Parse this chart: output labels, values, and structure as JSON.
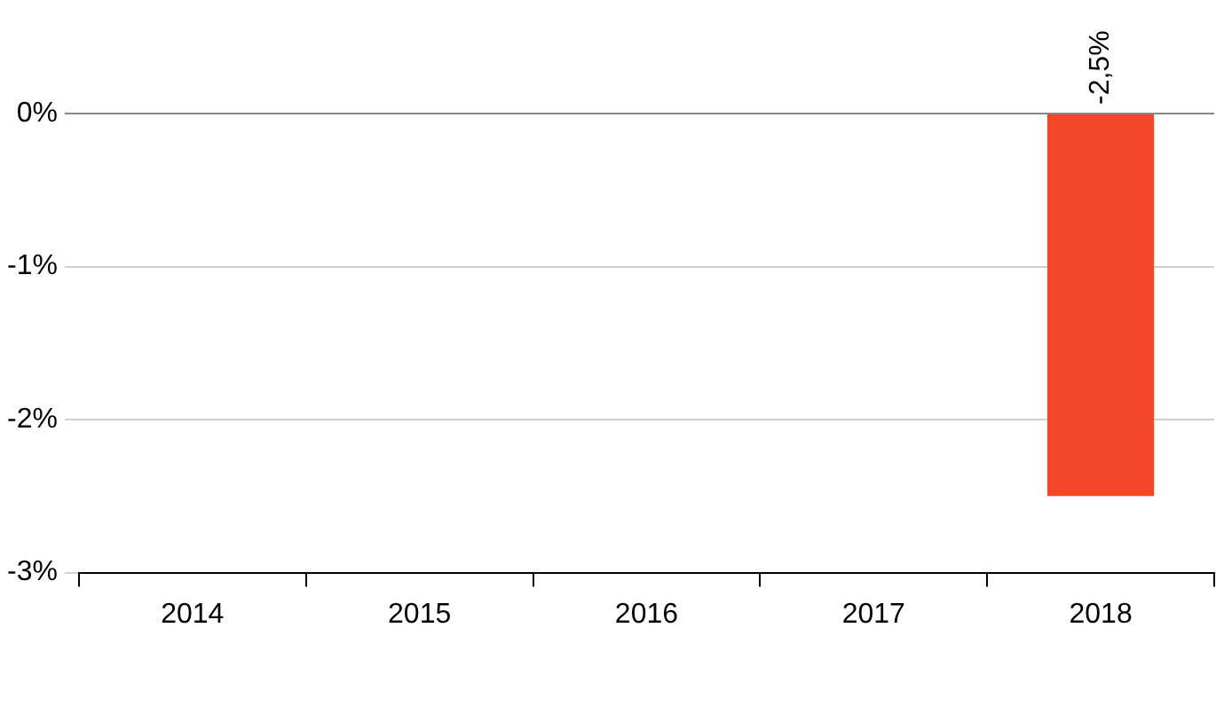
{
  "chart_data": {
    "type": "bar",
    "categories": [
      "2014",
      "2015",
      "2016",
      "2017",
      "2018"
    ],
    "series": [
      {
        "color": "#f4472a",
        "values": [
          null,
          null,
          null,
          null,
          -2.5
        ],
        "value_labels": [
          null,
          null,
          null,
          null,
          "-2,5%"
        ]
      }
    ],
    "ylim": [
      -3,
      0
    ],
    "yticks": [
      {
        "value": -3,
        "label": "-3%"
      },
      {
        "value": -2,
        "label": "-2%"
      },
      {
        "value": -1,
        "label": "-1%"
      },
      {
        "value": 0,
        "label": "0%"
      }
    ],
    "grid": "y",
    "legend": false
  }
}
